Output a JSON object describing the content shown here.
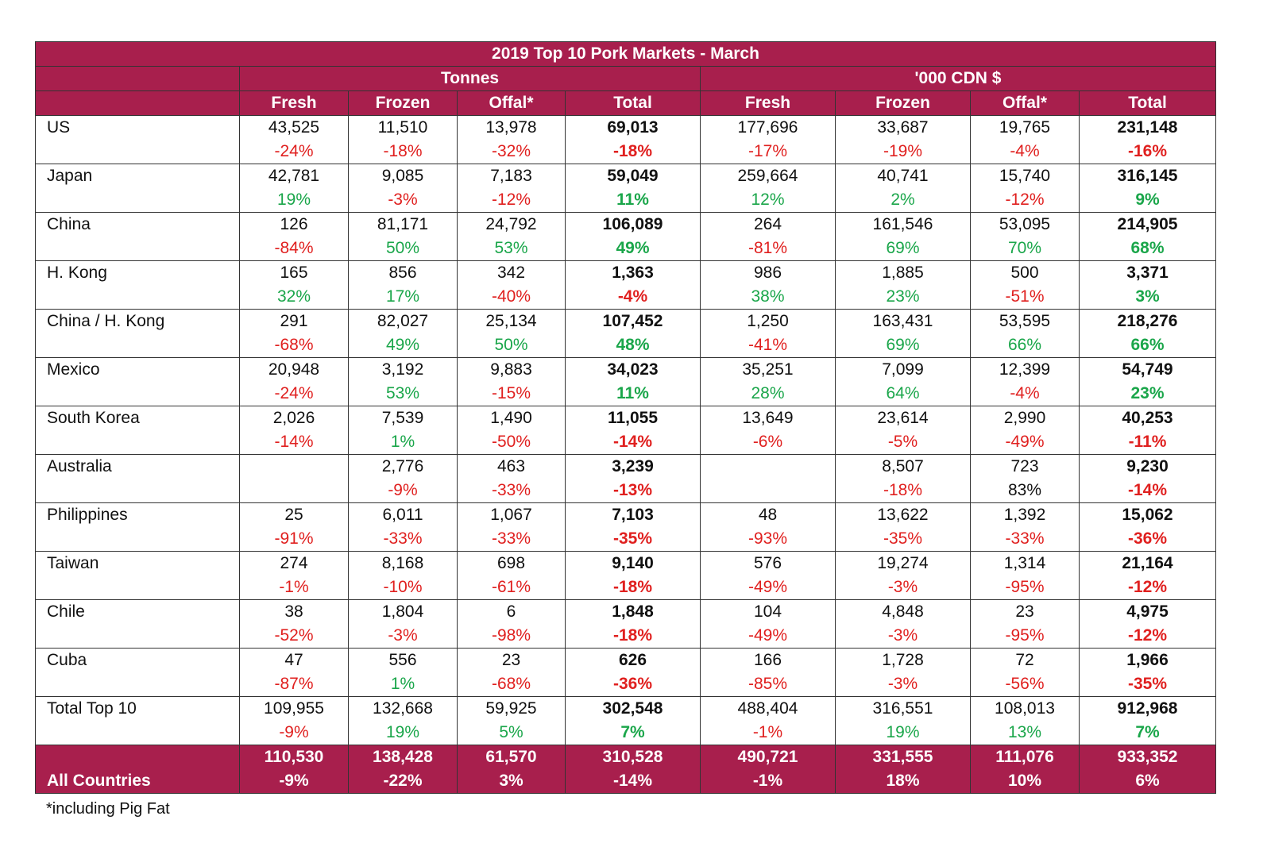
{
  "title": "2019 Top 10 Pork Markets - March",
  "groups": {
    "tonnes": "Tonnes",
    "cdn": "'000 CDN $"
  },
  "columns": [
    "Fresh",
    "Frozen",
    "Offal*",
    "Total",
    "Fresh",
    "Frozen",
    "Offal*",
    "Total"
  ],
  "rows": [
    {
      "country": "US",
      "v": [
        "43,525",
        "11,510",
        "13,978",
        "69,013",
        "177,696",
        "33,687",
        "19,765",
        "231,148"
      ],
      "p": [
        "-24%",
        "-18%",
        "-32%",
        "-18%",
        "-17%",
        "-19%",
        "-4%",
        "-16%"
      ],
      "c": [
        "neg",
        "neg",
        "neg",
        "neg",
        "neg",
        "neg",
        "neg",
        "neg"
      ]
    },
    {
      "country": "Japan",
      "v": [
        "42,781",
        "9,085",
        "7,183",
        "59,049",
        "259,664",
        "40,741",
        "15,740",
        "316,145"
      ],
      "p": [
        "19%",
        "-3%",
        "-12%",
        "11%",
        "12%",
        "2%",
        "-12%",
        "9%"
      ],
      "c": [
        "pos",
        "neg",
        "neg",
        "pos",
        "pos",
        "pos",
        "neg",
        "pos"
      ]
    },
    {
      "country": "China",
      "v": [
        "126",
        "81,171",
        "24,792",
        "106,089",
        "264",
        "161,546",
        "53,095",
        "214,905"
      ],
      "p": [
        "-84%",
        "50%",
        "53%",
        "49%",
        "-81%",
        "69%",
        "70%",
        "68%"
      ],
      "c": [
        "neg",
        "pos",
        "pos",
        "pos",
        "neg",
        "pos",
        "pos",
        "pos"
      ]
    },
    {
      "country": "H. Kong",
      "v": [
        "165",
        "856",
        "342",
        "1,363",
        "986",
        "1,885",
        "500",
        "3,371"
      ],
      "p": [
        "32%",
        "17%",
        "-40%",
        "-4%",
        "38%",
        "23%",
        "-51%",
        "3%"
      ],
      "c": [
        "pos",
        "pos",
        "neg",
        "neg",
        "pos",
        "pos",
        "neg",
        "pos"
      ]
    },
    {
      "country": "China / H. Kong",
      "v": [
        "291",
        "82,027",
        "25,134",
        "107,452",
        "1,250",
        "163,431",
        "53,595",
        "218,276"
      ],
      "p": [
        "-68%",
        "49%",
        "50%",
        "48%",
        "-41%",
        "69%",
        "66%",
        "66%"
      ],
      "c": [
        "neg",
        "pos",
        "pos",
        "pos",
        "neg",
        "pos",
        "pos",
        "pos"
      ]
    },
    {
      "country": "Mexico",
      "v": [
        "20,948",
        "3,192",
        "9,883",
        "34,023",
        "35,251",
        "7,099",
        "12,399",
        "54,749"
      ],
      "p": [
        "-24%",
        "53%",
        "-15%",
        "11%",
        "28%",
        "64%",
        "-4%",
        "23%"
      ],
      "c": [
        "neg",
        "pos",
        "neg",
        "pos",
        "pos",
        "pos",
        "neg",
        "pos"
      ]
    },
    {
      "country": "South Korea",
      "v": [
        "2,026",
        "7,539",
        "1,490",
        "11,055",
        "13,649",
        "23,614",
        "2,990",
        "40,253"
      ],
      "p": [
        "-14%",
        "1%",
        "-50%",
        "-14%",
        "-6%",
        "-5%",
        "-49%",
        "-11%"
      ],
      "c": [
        "neg",
        "pos",
        "neg",
        "neg",
        "neg",
        "neg",
        "neg",
        "neg"
      ]
    },
    {
      "country": "Australia",
      "v": [
        "",
        "2,776",
        "463",
        "3,239",
        "",
        "8,507",
        "723",
        "9,230"
      ],
      "p": [
        "",
        "-9%",
        "-33%",
        "-13%",
        "",
        "-18%",
        "83%",
        "-14%"
      ],
      "c": [
        "neg",
        "neg",
        "neg",
        "neg",
        "neg",
        "neg",
        "blk",
        "neg"
      ]
    },
    {
      "country": "Philippines",
      "v": [
        "25",
        "6,011",
        "1,067",
        "7,103",
        "48",
        "13,622",
        "1,392",
        "15,062"
      ],
      "p": [
        "-91%",
        "-33%",
        "-33%",
        "-35%",
        "-93%",
        "-35%",
        "-33%",
        "-36%"
      ],
      "c": [
        "neg",
        "neg",
        "neg",
        "neg",
        "neg",
        "neg",
        "neg",
        "neg"
      ]
    },
    {
      "country": "Taiwan",
      "v": [
        "274",
        "8,168",
        "698",
        "9,140",
        "576",
        "19,274",
        "1,314",
        "21,164"
      ],
      "p": [
        "-1%",
        "-10%",
        "-61%",
        "-18%",
        "-49%",
        "-3%",
        "-95%",
        "-12%"
      ],
      "c": [
        "neg",
        "neg",
        "neg",
        "neg",
        "neg",
        "neg",
        "neg",
        "neg"
      ]
    },
    {
      "country": "Chile",
      "v": [
        "38",
        "1,804",
        "6",
        "1,848",
        "104",
        "4,848",
        "23",
        "4,975"
      ],
      "p": [
        "-52%",
        "-3%",
        "-98%",
        "-18%",
        "-49%",
        "-3%",
        "-95%",
        "-12%"
      ],
      "c": [
        "neg",
        "neg",
        "neg",
        "neg",
        "neg",
        "neg",
        "neg",
        "neg"
      ]
    },
    {
      "country": "Cuba",
      "v": [
        "47",
        "556",
        "23",
        "626",
        "166",
        "1,728",
        "72",
        "1,966"
      ],
      "p": [
        "-87%",
        "1%",
        "-68%",
        "-36%",
        "-85%",
        "-3%",
        "-56%",
        "-35%"
      ],
      "c": [
        "neg",
        "pos",
        "neg",
        "neg",
        "neg",
        "neg",
        "neg",
        "neg"
      ]
    },
    {
      "country": "Total Top 10",
      "v": [
        "109,955",
        "132,668",
        "59,925",
        "302,548",
        "488,404",
        "316,551",
        "108,013",
        "912,968"
      ],
      "p": [
        "-9%",
        "19%",
        "5%",
        "7%",
        "-1%",
        "19%",
        "13%",
        "7%"
      ],
      "c": [
        "neg",
        "pos",
        "pos",
        "pos",
        "neg",
        "pos",
        "pos",
        "pos"
      ]
    }
  ],
  "all_countries": {
    "country": "All Countries",
    "v": [
      "110,530",
      "138,428",
      "61,570",
      "310,528",
      "490,721",
      "331,555",
      "111,076",
      "933,352"
    ],
    "p": [
      "-9%",
      "-22%",
      "3%",
      "-14%",
      "-1%",
      "18%",
      "10%",
      "6%"
    ]
  },
  "footnote": "*including Pig Fat",
  "colors": {
    "header_bg": "#a81f4d",
    "negative": "#e0201f",
    "positive": "#1aa64a"
  }
}
